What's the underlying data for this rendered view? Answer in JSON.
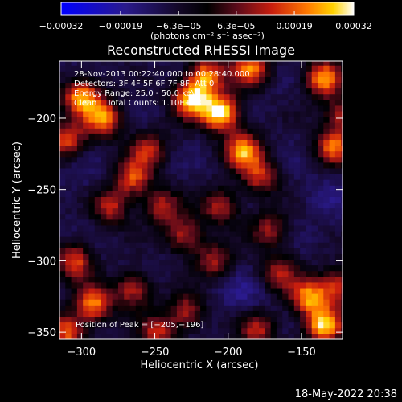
{
  "chart_data": {
    "type": "heatmap",
    "title": "Reconstructed RHESSI Image",
    "xlabel": "Heliocentric X (arcsec)",
    "ylabel": "Heliocentric Y (arcsec)",
    "xlim": [
      -315,
      -122
    ],
    "ylim": [
      -355,
      -160
    ],
    "x_ticks": [
      -300,
      -250,
      -200,
      -150
    ],
    "y_ticks": [
      -200,
      -250,
      -300,
      -350
    ],
    "x_tick_labels": [
      "−300",
      "−250",
      "−200",
      "−150"
    ],
    "y_tick_labels": [
      "−200",
      "−250",
      "−300",
      "−350"
    ],
    "colorbar": {
      "ticks": [
        -0.00032,
        -0.00019,
        -6.3e-05,
        6.3e-05,
        0.00019,
        0.00032
      ],
      "tick_labels": [
        "−0.00032",
        "−0.00019",
        "−6.3e−05",
        "6.3e−05",
        "0.00019",
        "0.00032"
      ],
      "range": [
        -0.00032,
        0.00032
      ],
      "unit_label": "(photons cm⁻² s⁻¹ asec⁻²)",
      "colormap": "blue-black-red-yellow-white"
    },
    "annotations": [
      "28-Nov-2013 00:22:40.000 to 00:28:40.000",
      "Detectors: 3F 4F 5F 6F 7F 8F, Att 0",
      "Energy Range: 25.0 - 50.0 keV",
      "Clean    Total Counts: 1.10E+03"
    ],
    "peak_label": "Position of Peak = [−205,−196]",
    "peak_position": [
      -205,
      -196
    ],
    "hotspots": [
      {
        "x": -300,
        "y": -185,
        "value": 0.00025
      },
      {
        "x": -285,
        "y": -200,
        "value": 0.00021
      },
      {
        "x": -310,
        "y": -215,
        "value": 0.00016
      },
      {
        "x": -225,
        "y": -187,
        "value": 0.00028
      },
      {
        "x": -205,
        "y": -196,
        "value": 0.00032
      },
      {
        "x": -215,
        "y": -170,
        "value": 0.00022
      },
      {
        "x": -185,
        "y": -165,
        "value": 0.00021
      },
      {
        "x": -190,
        "y": -222,
        "value": 0.00024
      },
      {
        "x": -178,
        "y": -240,
        "value": 0.00014
      },
      {
        "x": -135,
        "y": -172,
        "value": 0.00024
      },
      {
        "x": -128,
        "y": -220,
        "value": 0.00019
      },
      {
        "x": -122,
        "y": -198,
        "value": 0.00012
      },
      {
        "x": -265,
        "y": -242,
        "value": 0.00016
      },
      {
        "x": -280,
        "y": -262,
        "value": 0.00013
      },
      {
        "x": -245,
        "y": -262,
        "value": 0.00012
      },
      {
        "x": -230,
        "y": -282,
        "value": 0.00013
      },
      {
        "x": -205,
        "y": -262,
        "value": 0.00012
      },
      {
        "x": -255,
        "y": -222,
        "value": 0.00012
      },
      {
        "x": -305,
        "y": -300,
        "value": 0.00017
      },
      {
        "x": -292,
        "y": -330,
        "value": 0.00022
      },
      {
        "x": -310,
        "y": -350,
        "value": 0.00019
      },
      {
        "x": -265,
        "y": -320,
        "value": 0.00013
      },
      {
        "x": -248,
        "y": -350,
        "value": 0.00013
      },
      {
        "x": -228,
        "y": -335,
        "value": 0.00012
      },
      {
        "x": -210,
        "y": -300,
        "value": 0.00011
      },
      {
        "x": -172,
        "y": -278,
        "value": 0.0001
      },
      {
        "x": -165,
        "y": -308,
        "value": 0.00011
      },
      {
        "x": -145,
        "y": -325,
        "value": 0.00022
      },
      {
        "x": -135,
        "y": -345,
        "value": 0.00028
      },
      {
        "x": -125,
        "y": -318,
        "value": 0.00015
      },
      {
        "x": -180,
        "y": -348,
        "value": 0.00013
      }
    ],
    "coldspots": [
      {
        "x": -190,
        "y": -326,
        "value": -0.00016
      },
      {
        "x": -135,
        "y": -255,
        "value": -0.00014
      },
      {
        "x": -300,
        "y": -245,
        "value": -0.00012
      },
      {
        "x": -220,
        "y": -312,
        "value": -0.00011
      },
      {
        "x": -160,
        "y": -218,
        "value": -0.0001
      },
      {
        "x": -240,
        "y": -205,
        "value": -9e-05
      }
    ]
  },
  "footer": {
    "date_stamp": "18-May-2022 20:38"
  }
}
